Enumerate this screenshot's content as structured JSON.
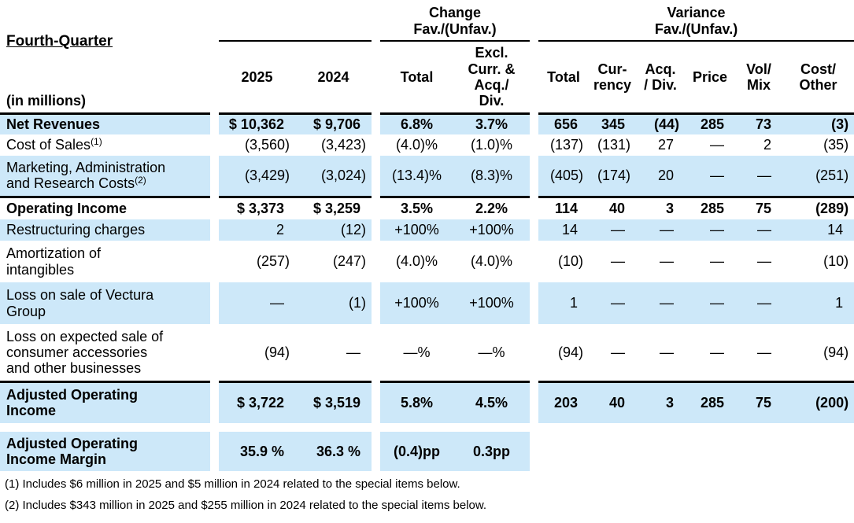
{
  "colors": {
    "row_highlight": "#cde8f9",
    "rule": "#000000",
    "text": "#000000"
  },
  "header": {
    "period": "Fourth-Quarter",
    "units": "(in millions)",
    "groups": {
      "change": "Change\nFav./(Unfav.)",
      "variance": "Variance\nFav./(Unfav.)"
    },
    "columns": {
      "year_2025": "2025",
      "year_2024": "2024",
      "chg_total": "Total",
      "chg_excl": "Excl.\nCurr. &\nAcq./\nDiv.",
      "var_total": "Total",
      "var_currency": "Cur-\nrency",
      "var_acq_div": "Acq.\n/ Div.",
      "var_price": "Price",
      "var_vol_mix": "Vol/\nMix",
      "var_cost_other": "Cost/\nOther"
    }
  },
  "rows": [
    {
      "label": "Net Revenues",
      "sup": "",
      "bold": true,
      "shaded": true,
      "line_above": false,
      "gap_above": false,
      "variance_hidden": false,
      "y2025": "$ 10,362",
      "y2024": "$ 9,706",
      "chg_total": "6.8%",
      "chg_excl": "3.7%",
      "var_total": "656",
      "var_currency": "345",
      "var_acq_div": "(44)",
      "var_price": "285",
      "var_vol_mix": "73",
      "var_cost_other": "(3)"
    },
    {
      "label": "Cost of Sales",
      "sup": "(1)",
      "bold": false,
      "shaded": false,
      "line_above": false,
      "gap_above": false,
      "variance_hidden": false,
      "y2025": "(3,560)",
      "y2024": "(3,423)",
      "chg_total": "(4.0)%",
      "chg_excl": "(1.0)%",
      "var_total": "(137)",
      "var_currency": "(131)",
      "var_acq_div": "27",
      "var_price": "—",
      "var_vol_mix": "2",
      "var_cost_other": "(35)"
    },
    {
      "label": "Marketing, Administration\nand Research Costs",
      "sup": "(2)",
      "bold": false,
      "shaded": true,
      "line_above": false,
      "gap_above": false,
      "variance_hidden": false,
      "y2025": "(3,429)",
      "y2024": "(3,024)",
      "chg_total": "(13.4)%",
      "chg_excl": "(8.3)%",
      "var_total": "(405)",
      "var_currency": "(174)",
      "var_acq_div": "20",
      "var_price": "—",
      "var_vol_mix": "—",
      "var_cost_other": "(251)"
    },
    {
      "label": "Operating Income",
      "sup": "",
      "bold": true,
      "shaded": false,
      "line_above": true,
      "gap_above": false,
      "variance_hidden": false,
      "y2025": "$ 3,373",
      "y2024": "$ 3,259",
      "chg_total": "3.5%",
      "chg_excl": "2.2%",
      "var_total": "114",
      "var_currency": "40",
      "var_acq_div": "3",
      "var_price": "285",
      "var_vol_mix": "75",
      "var_cost_other": "(289)"
    },
    {
      "label": "Restructuring charges",
      "sup": "",
      "bold": false,
      "shaded": true,
      "line_above": false,
      "gap_above": false,
      "variance_hidden": false,
      "y2025": "2",
      "y2024": "(12)",
      "chg_total": "+100%",
      "chg_excl": "+100%",
      "var_total": "14",
      "var_currency": "—",
      "var_acq_div": "—",
      "var_price": "—",
      "var_vol_mix": "—",
      "var_cost_other": "14"
    },
    {
      "label": "Amortization of\nintangibles",
      "sup": "",
      "bold": false,
      "shaded": false,
      "line_above": false,
      "gap_above": false,
      "variance_hidden": false,
      "y2025": "(257)",
      "y2024": "(247)",
      "chg_total": "(4.0)%",
      "chg_excl": "(4.0)%",
      "var_total": "(10)",
      "var_currency": "—",
      "var_acq_div": "—",
      "var_price": "—",
      "var_vol_mix": "—",
      "var_cost_other": "(10)"
    },
    {
      "label": "Loss on sale of Vectura\nGroup",
      "sup": "",
      "bold": false,
      "shaded": true,
      "line_above": false,
      "gap_above": false,
      "variance_hidden": false,
      "y2025": "—",
      "y2024": "(1)",
      "chg_total": "+100%",
      "chg_excl": "+100%",
      "var_total": "1",
      "var_currency": "—",
      "var_acq_div": "—",
      "var_price": "—",
      "var_vol_mix": "—",
      "var_cost_other": "1"
    },
    {
      "label": "Loss on expected sale of\nconsumer accessories\nand other businesses",
      "sup": "",
      "bold": false,
      "shaded": false,
      "line_above": false,
      "gap_above": false,
      "variance_hidden": false,
      "y2025": "(94)",
      "y2024": "—",
      "chg_total": "—%",
      "chg_excl": "—%",
      "var_total": "(94)",
      "var_currency": "—",
      "var_acq_div": "—",
      "var_price": "—",
      "var_vol_mix": "—",
      "var_cost_other": "(94)"
    },
    {
      "label": "Adjusted Operating\nIncome",
      "sup": "",
      "bold": true,
      "shaded": true,
      "line_above": true,
      "gap_above": false,
      "variance_hidden": false,
      "y2025": "$ 3,722",
      "y2024": "$ 3,519",
      "chg_total": "5.8%",
      "chg_excl": "4.5%",
      "var_total": "203",
      "var_currency": "40",
      "var_acq_div": "3",
      "var_price": "285",
      "var_vol_mix": "75",
      "var_cost_other": "(200)"
    },
    {
      "label": "Adjusted Operating\nIncome Margin",
      "sup": "",
      "bold": true,
      "shaded": true,
      "line_above": false,
      "gap_above": true,
      "variance_hidden": true,
      "y2025": "35.9 %",
      "y2024": "36.3 %",
      "chg_total": "(0.4)pp",
      "chg_excl": "0.3pp",
      "var_total": null,
      "var_currency": null,
      "var_acq_div": null,
      "var_price": null,
      "var_vol_mix": null,
      "var_cost_other": null
    }
  ],
  "footnotes": [
    "(1) Includes $6 million in 2025 and $5 million in 2024 related to the special items below.",
    "(2) Includes $343 million in 2025 and $255 million in 2024 related to the special items below."
  ]
}
